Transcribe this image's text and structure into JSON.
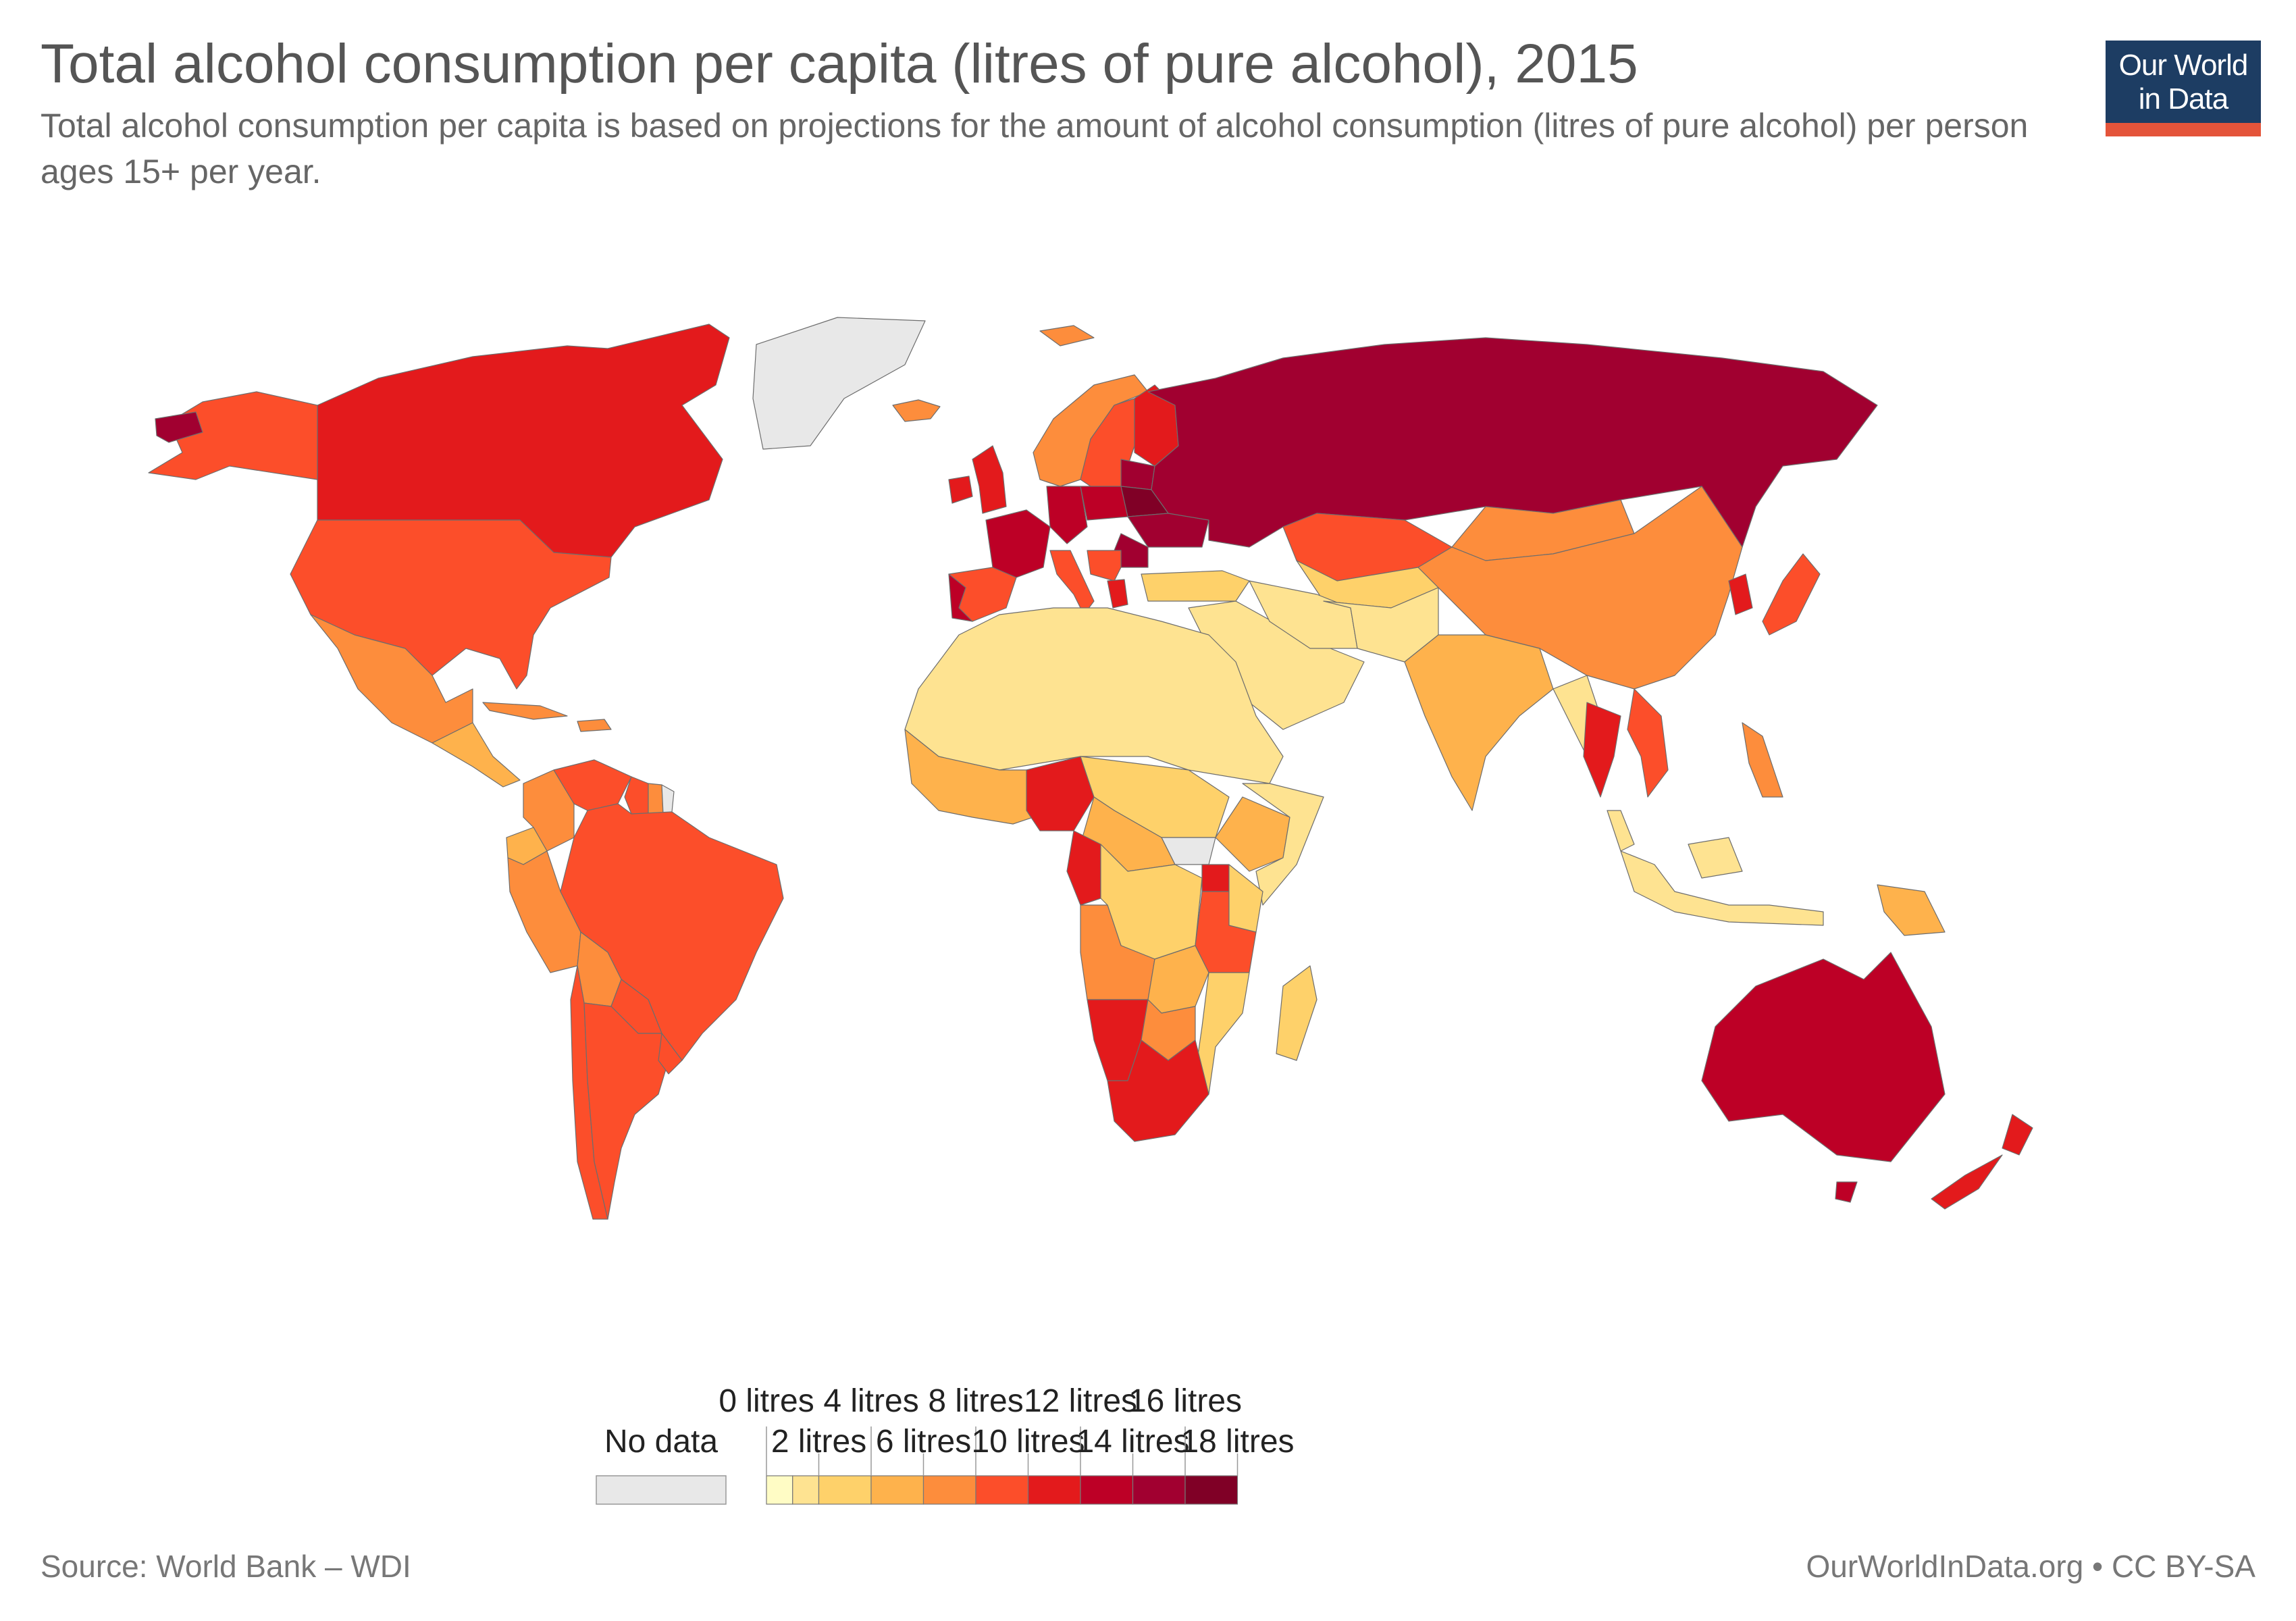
{
  "header": {
    "title": "Total alcohol consumption per capita (litres of pure alcohol), 2015",
    "subtitle": "Total alcohol consumption per capita is based on projections for the amount of alcohol consumption (litres of pure alcohol) per person ages 15+ per year."
  },
  "logo": {
    "line1": "Our World",
    "line2": "in Data"
  },
  "footer": {
    "source": "Source: World Bank – WDI",
    "credit": "OurWorldInData.org • CC BY-SA"
  },
  "colors": {
    "no_data": "#e8e8e8",
    "bins": [
      "#fffcc5",
      "#fee391",
      "#fed16a",
      "#feb24c",
      "#fd8d3c",
      "#fc4e2a",
      "#e31a1c",
      "#bd0026",
      "#a10030",
      "#800026"
    ],
    "border": "#6d6d6d",
    "logo_bg": "#1d3d63",
    "logo_accent": "#e4543a"
  },
  "legend": {
    "no_data_label": "No data",
    "top_labels": [
      "0 litres",
      "4 litres",
      "8 litres",
      "12 litres",
      "16 litres"
    ],
    "bottom_labels": [
      "2 litres",
      "6 litres",
      "10 litres",
      "14 litres",
      "18 litres"
    ],
    "breaks": [
      0,
      1,
      2,
      4,
      6,
      8,
      10,
      12,
      14,
      16,
      18
    ]
  },
  "chart_data": {
    "type": "choropleth",
    "unit": "litres",
    "year": 2015,
    "regions": [
      {
        "name": "Canada",
        "value": 11
      },
      {
        "name": "Alaska",
        "value": 9
      },
      {
        "name": "Aleutians",
        "value": 15
      },
      {
        "name": "Greenland",
        "value": null
      },
      {
        "name": "United States",
        "value": 9
      },
      {
        "name": "Mexico",
        "value": 7
      },
      {
        "name": "Central America",
        "value": 5
      },
      {
        "name": "Cuba",
        "value": 6
      },
      {
        "name": "Hispaniola",
        "value": 7
      },
      {
        "name": "Colombia",
        "value": 7
      },
      {
        "name": "Venezuela",
        "value": 9
      },
      {
        "name": "Guyana",
        "value": 9
      },
      {
        "name": "Suriname",
        "value": 6
      },
      {
        "name": "French Guiana",
        "value": null
      },
      {
        "name": "Ecuador",
        "value": 5
      },
      {
        "name": "Peru",
        "value": 6
      },
      {
        "name": "Brazil",
        "value": 9
      },
      {
        "name": "Bolivia",
        "value": 6
      },
      {
        "name": "Paraguay",
        "value": 9
      },
      {
        "name": "Chile",
        "value": 9
      },
      {
        "name": "Argentina",
        "value": 8
      },
      {
        "name": "Uruguay",
        "value": 9
      },
      {
        "name": "Iceland",
        "value": 7
      },
      {
        "name": "Svalbard",
        "value": 7
      },
      {
        "name": "Norway",
        "value": 7
      },
      {
        "name": "Sweden",
        "value": 9
      },
      {
        "name": "Finland",
        "value": 11
      },
      {
        "name": "United Kingdom",
        "value": 11
      },
      {
        "name": "Ireland",
        "value": 11
      },
      {
        "name": "Spain",
        "value": 9
      },
      {
        "name": "Portugal",
        "value": 12
      },
      {
        "name": "France",
        "value": 12
      },
      {
        "name": "Germany",
        "value": 12
      },
      {
        "name": "Poland",
        "value": 13
      },
      {
        "name": "Baltics",
        "value": 14
      },
      {
        "name": "Belarus",
        "value": 17
      },
      {
        "name": "Ukraine",
        "value": 15
      },
      {
        "name": "Romania",
        "value": 14
      },
      {
        "name": "Italy",
        "value": 8
      },
      {
        "name": "Balkans",
        "value": 9
      },
      {
        "name": "Greece",
        "value": 10
      },
      {
        "name": "Turkey",
        "value": 2
      },
      {
        "name": "Russia",
        "value": 15
      },
      {
        "name": "Kazakhstan",
        "value": 9
      },
      {
        "name": "Central Asia",
        "value": 3
      },
      {
        "name": "Mongolia",
        "value": 7
      },
      {
        "name": "China",
        "value": 7
      },
      {
        "name": "Korea",
        "value": 11
      },
      {
        "name": "Japan",
        "value": 8
      },
      {
        "name": "Middle East",
        "value": 1
      },
      {
        "name": "Iran",
        "value": 1
      },
      {
        "name": "Afghanistan / Pakistan",
        "value": 1
      },
      {
        "name": "India",
        "value": 5
      },
      {
        "name": "Myanmar",
        "value": 1
      },
      {
        "name": "Thailand",
        "value": 10
      },
      {
        "name": "Vietnam",
        "value": 9
      },
      {
        "name": "Malaysia",
        "value": 1
      },
      {
        "name": "Philippines",
        "value": 6
      },
      {
        "name": "Indonesia",
        "value": 1
      },
      {
        "name": "Papua New Guinea",
        "value": 4
      },
      {
        "name": "Australia",
        "value": 13
      },
      {
        "name": "New Zealand",
        "value": 11
      },
      {
        "name": "North Africa",
        "value": 1
      },
      {
        "name": "West Africa",
        "value": 5
      },
      {
        "name": "Nigeria",
        "value": 11
      },
      {
        "name": "Sudan / Chad",
        "value": 3
      },
      {
        "name": "Ethiopia",
        "value": 5
      },
      {
        "name": "Somalia / Eritrea",
        "value": 1
      },
      {
        "name": "South Sudan",
        "value": null
      },
      {
        "name": "Central Africa",
        "value": 4
      },
      {
        "name": "Gabon / Congo",
        "value": 11
      },
      {
        "name": "DR Congo",
        "value": 3
      },
      {
        "name": "Uganda",
        "value": 10
      },
      {
        "name": "Tanzania",
        "value": 9
      },
      {
        "name": "Kenya",
        "value": 3
      },
      {
        "name": "Angola",
        "value": 7
      },
      {
        "name": "Zambia",
        "value": 4
      },
      {
        "name": "Mozambique",
        "value": 2
      },
      {
        "name": "Madagascar",
        "value": 2
      },
      {
        "name": "Namibia",
        "value": 11
      },
      {
        "name": "Botswana",
        "value": 7
      },
      {
        "name": "South Africa",
        "value": 11
      }
    ]
  }
}
